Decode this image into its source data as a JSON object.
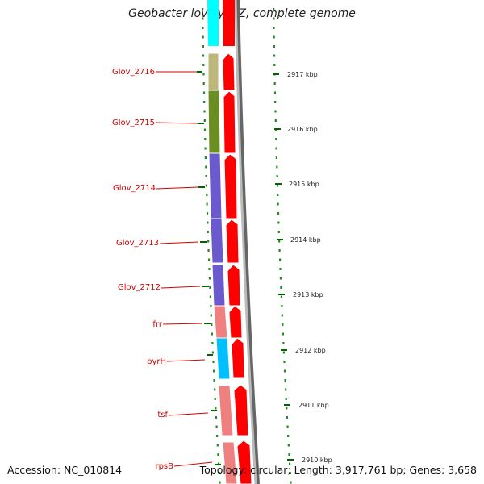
{
  "header": {
    "title": "Geobacter lovleyi SZ, complete genome"
  },
  "footer": {
    "accession": "Accession: NC_010814",
    "summary": "Topology: circular; Length: 3,917,761 bp; Genes: 3,658"
  },
  "genes": [
    {
      "label": "Glov_2716",
      "color": "#bdb77a"
    },
    {
      "label": "Glov_2715",
      "color": "#6b8e23"
    },
    {
      "label": "Glov_2714",
      "color": "#6a5acd"
    },
    {
      "label": "Glov_2713",
      "color": "#6a5acd"
    },
    {
      "label": "Glov_2712",
      "color": "#6a5acd"
    },
    {
      "label": "frr",
      "color": "#f08080"
    },
    {
      "label": "pyrH",
      "color": "#00bfff"
    },
    {
      "label": "tsf",
      "color": "#f08080"
    },
    {
      "label": "rpsB",
      "color": "#f08080"
    }
  ],
  "top_partial_gene_color": "#00ffff",
  "strand_arrow_color": "#ff0000",
  "kbp_ticks": [
    "2917 kbp",
    "2916 kbp",
    "2915 kbp",
    "2914 kbp",
    "2913 kbp",
    "2912 kbp",
    "2911 kbp",
    "2910 kbp"
  ]
}
